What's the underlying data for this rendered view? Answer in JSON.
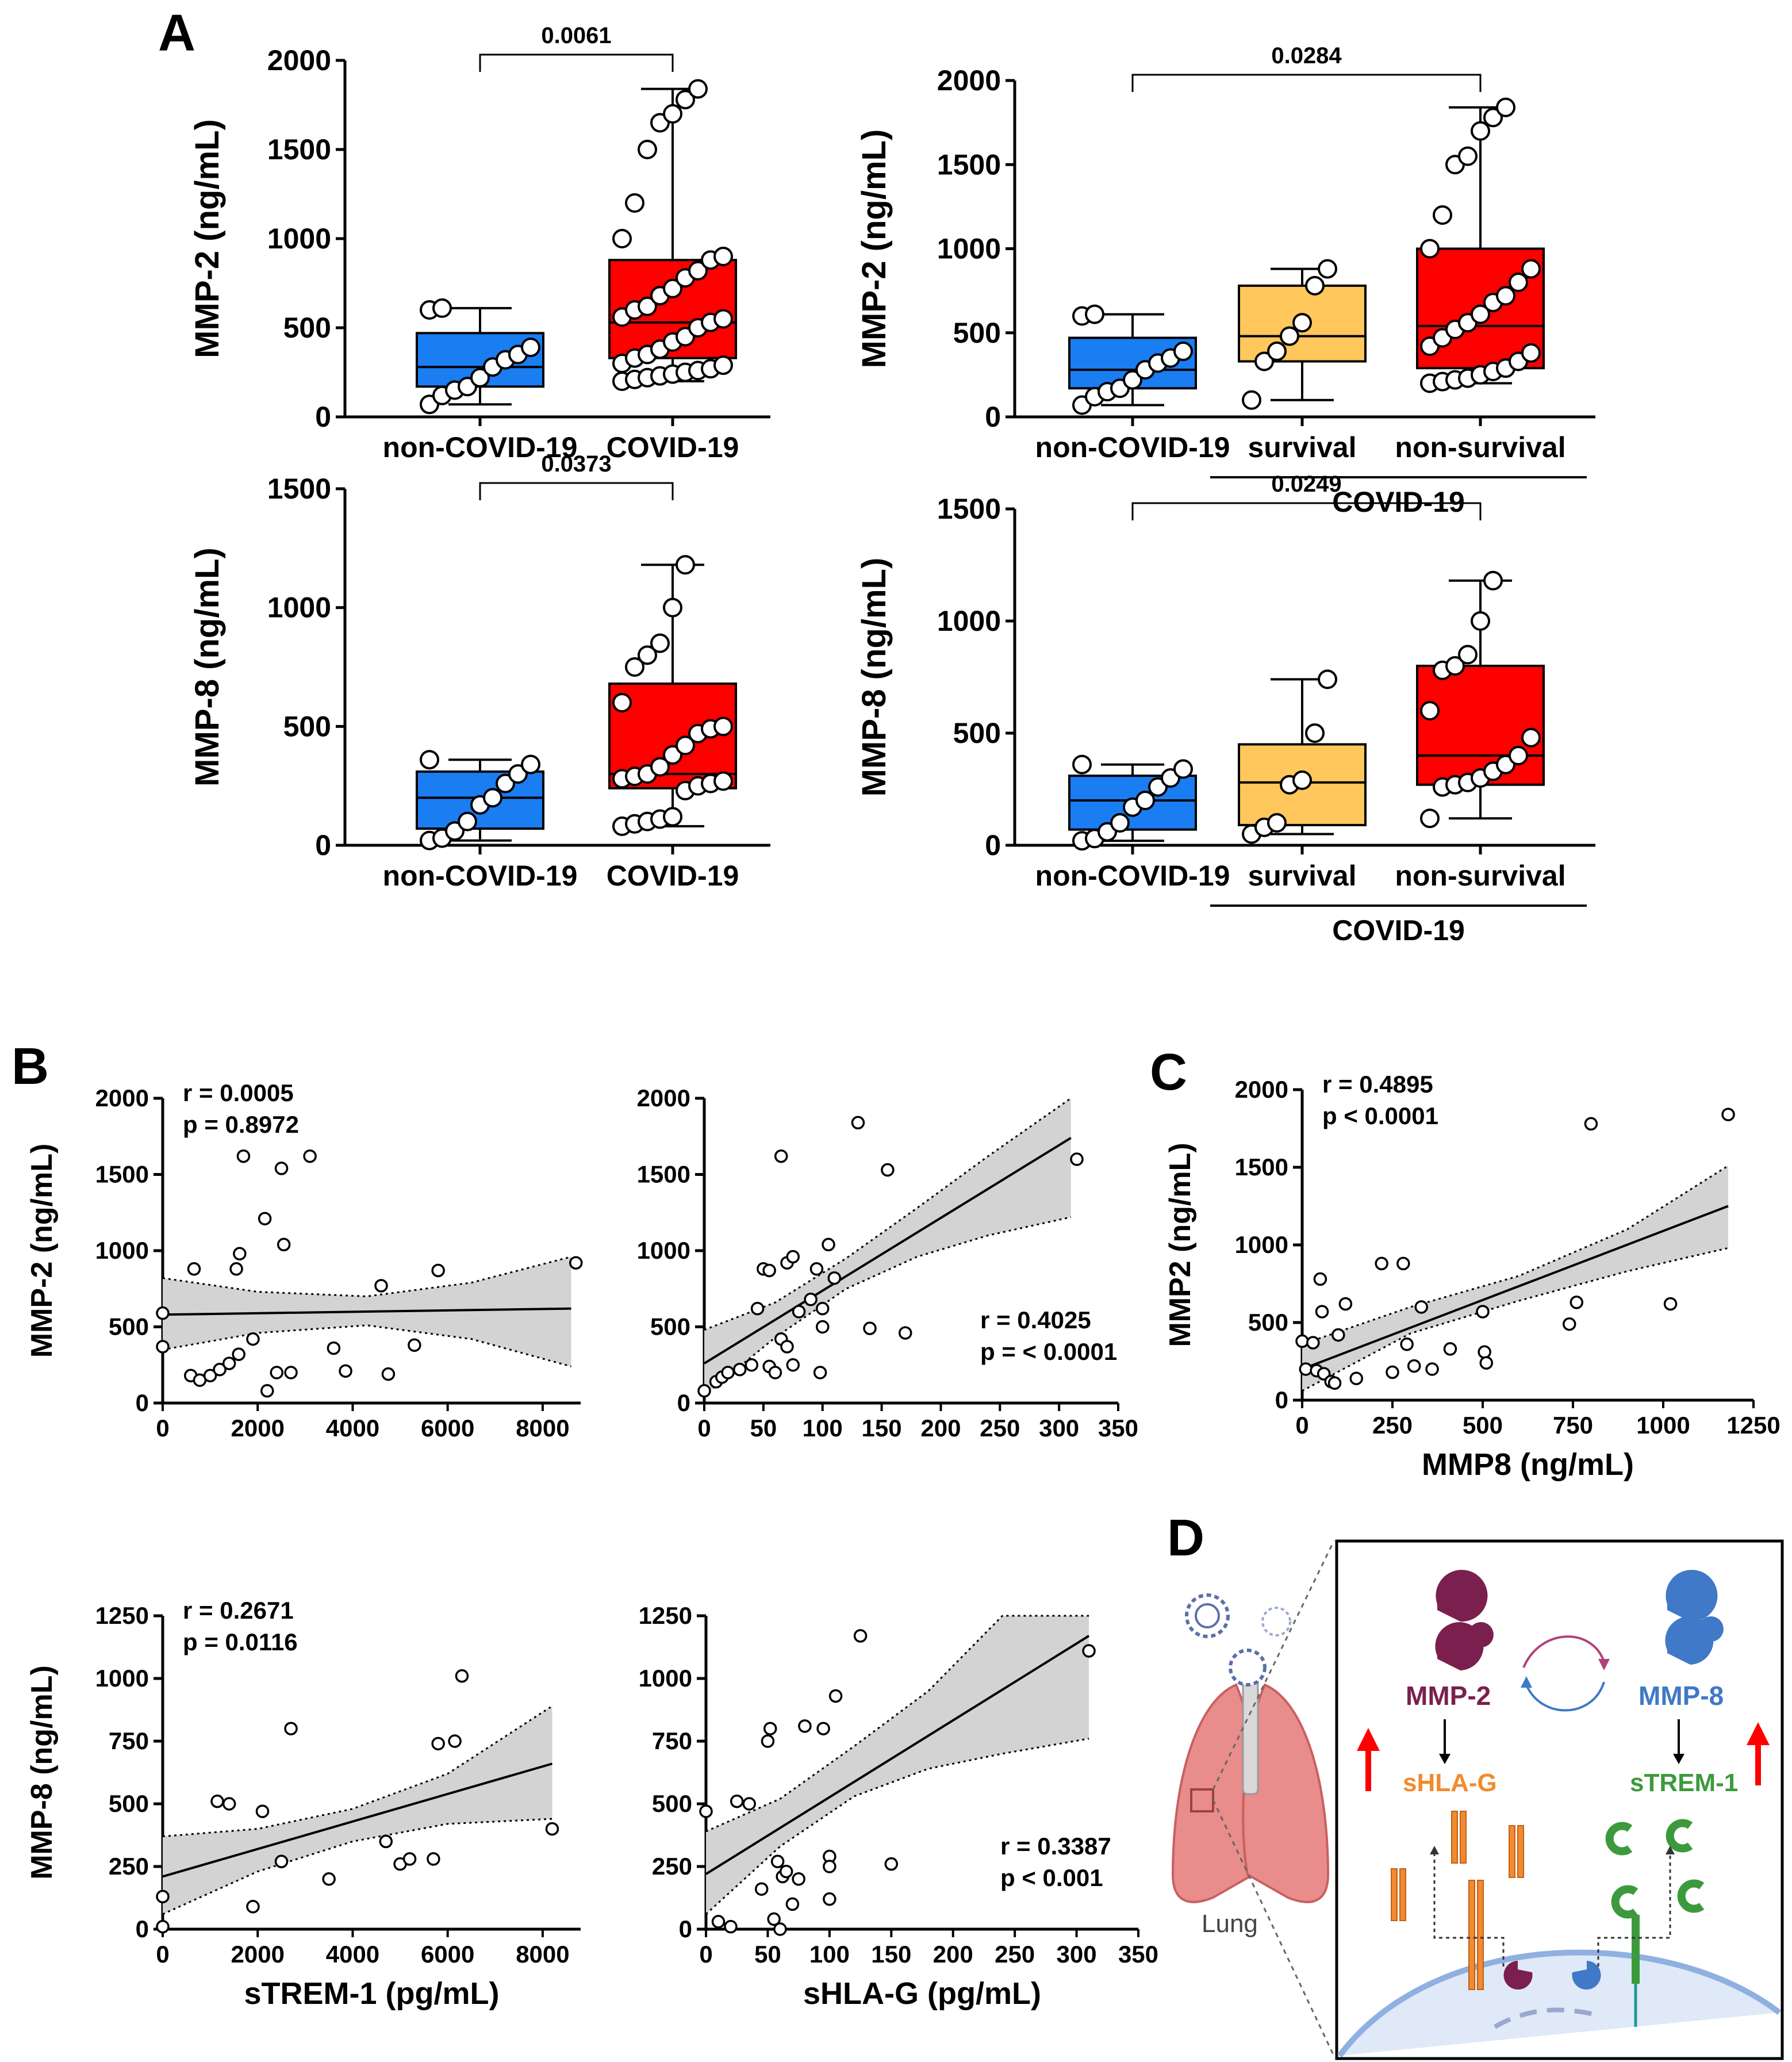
{
  "colors": {
    "non_covid": "#1a7df2",
    "covid": "#ff0000",
    "survival": "#ffc75c",
    "band": "#d3d3d3",
    "mmp2_icon": "#7a1f4e",
    "mmp8_icon": "#3f79c7",
    "shla_g": "#f28a2e",
    "strem1": "#3c9a3c",
    "arrow_up": "#ff0000",
    "lung": "#e88c8c"
  },
  "panel_labels": {
    "A": "A",
    "B": "B",
    "C": "C",
    "D": "D"
  },
  "diagram": {
    "mmp2": "MMP-2",
    "mmp8": "MMP-8",
    "shla_g": "sHLA-G",
    "strem1": "sTREM-1",
    "lung": "Lung"
  },
  "chart_data": [
    {
      "id": "A1",
      "type": "box",
      "ylabel": "MMP-2 (ng/mL)",
      "ylim": [
        0,
        2000
      ],
      "yticks": [
        0,
        500,
        1000,
        1500,
        2000
      ],
      "categories": [
        "non-COVID-19",
        "COVID-19"
      ],
      "pvalue": "0.0061",
      "compare": [
        0,
        1
      ],
      "boxes": [
        {
          "min": 70,
          "q1": 170,
          "median": 280,
          "q3": 470,
          "max": 610,
          "points": [
            70,
            120,
            150,
            170,
            220,
            280,
            320,
            350,
            390,
            600,
            610
          ]
        },
        {
          "min": 200,
          "q1": 330,
          "median": 530,
          "q3": 880,
          "max": 1840,
          "points": [
            200,
            210,
            220,
            230,
            240,
            250,
            260,
            270,
            290,
            300,
            330,
            350,
            380,
            420,
            450,
            500,
            530,
            550,
            560,
            600,
            620,
            680,
            720,
            780,
            820,
            880,
            900,
            1000,
            1200,
            1500,
            1650,
            1700,
            1780,
            1840
          ]
        }
      ]
    },
    {
      "id": "A2",
      "type": "box",
      "ylabel": "MMP-2 (ng/mL)",
      "ylim": [
        0,
        2000
      ],
      "yticks": [
        0,
        500,
        1000,
        1500,
        2000
      ],
      "categories": [
        "non-COVID-19",
        "survival",
        "non-survival"
      ],
      "group_label": "COVID-19",
      "pvalue": "0.0284",
      "compare": [
        0,
        2
      ],
      "boxes": [
        {
          "min": 70,
          "q1": 170,
          "median": 280,
          "q3": 470,
          "max": 610,
          "points": [
            70,
            120,
            150,
            170,
            220,
            280,
            320,
            350,
            390,
            600,
            610
          ]
        },
        {
          "min": 100,
          "q1": 330,
          "median": 480,
          "q3": 780,
          "max": 880,
          "points": [
            100,
            330,
            390,
            480,
            560,
            780,
            880
          ]
        },
        {
          "min": 200,
          "q1": 290,
          "median": 540,
          "q3": 1000,
          "max": 1840,
          "points": [
            200,
            210,
            220,
            230,
            250,
            270,
            290,
            330,
            380,
            420,
            470,
            520,
            560,
            610,
            680,
            720,
            800,
            880,
            1000,
            1200,
            1500,
            1550,
            1700,
            1780,
            1840
          ]
        }
      ]
    },
    {
      "id": "A3",
      "type": "box",
      "ylabel": "MMP-8 (ng/mL)",
      "ylim": [
        0,
        1500
      ],
      "yticks": [
        0,
        500,
        1000,
        1500
      ],
      "categories": [
        "non-COVID-19",
        "COVID-19"
      ],
      "pvalue": "0.0373",
      "compare": [
        0,
        1
      ],
      "boxes": [
        {
          "min": 20,
          "q1": 70,
          "median": 200,
          "q3": 310,
          "max": 360,
          "points": [
            20,
            30,
            60,
            100,
            170,
            200,
            260,
            300,
            340,
            360
          ]
        },
        {
          "min": 80,
          "q1": 240,
          "median": 300,
          "q3": 680,
          "max": 1180,
          "points": [
            80,
            90,
            100,
            110,
            120,
            230,
            250,
            260,
            270,
            280,
            290,
            300,
            330,
            380,
            420,
            470,
            490,
            500,
            600,
            750,
            800,
            850,
            1000,
            1180
          ]
        }
      ]
    },
    {
      "id": "A4",
      "type": "box",
      "ylabel": "MMP-8 (ng/mL)",
      "ylim": [
        0,
        1500
      ],
      "yticks": [
        0,
        500,
        1000,
        1500
      ],
      "categories": [
        "non-COVID-19",
        "survival",
        "non-survival"
      ],
      "group_label": "COVID-19",
      "pvalue": "0.0249",
      "compare": [
        0,
        2
      ],
      "boxes": [
        {
          "min": 20,
          "q1": 70,
          "median": 200,
          "q3": 310,
          "max": 360,
          "points": [
            20,
            30,
            60,
            100,
            170,
            200,
            260,
            300,
            340,
            360
          ]
        },
        {
          "min": 50,
          "q1": 90,
          "median": 280,
          "q3": 450,
          "max": 740,
          "points": [
            50,
            80,
            100,
            270,
            290,
            500,
            740
          ]
        },
        {
          "min": 120,
          "q1": 270,
          "median": 400,
          "q3": 800,
          "max": 1180,
          "points": [
            120,
            260,
            270,
            280,
            300,
            330,
            360,
            400,
            480,
            600,
            780,
            800,
            850,
            1000,
            1180
          ]
        }
      ]
    },
    {
      "id": "B1",
      "type": "scatter",
      "ylabel": "MMP-2 (ng/mL)",
      "xlabel": "",
      "xlim": [
        0,
        8800
      ],
      "ylim": [
        0,
        2000
      ],
      "xticks": [
        0,
        2000,
        4000,
        6000,
        8000
      ],
      "yticks": [
        0,
        500,
        1000,
        1500,
        2000
      ],
      "stats": [
        "r = 0.0005",
        "p = 0.8972"
      ],
      "stats_pos": "top-left",
      "fit": {
        "x0": 0,
        "y0": 580,
        "x1": 8600,
        "y1": 620
      },
      "band": {
        "xs": [
          0,
          2000,
          4300,
          6500,
          8600
        ],
        "lo": [
          350,
          460,
          510,
          420,
          240
        ],
        "hi": [
          820,
          730,
          700,
          790,
          960
        ]
      },
      "points": [
        [
          0,
          590
        ],
        [
          0,
          370
        ],
        [
          660,
          880
        ],
        [
          590,
          180
        ],
        [
          780,
          150
        ],
        [
          1000,
          180
        ],
        [
          1200,
          220
        ],
        [
          1400,
          260
        ],
        [
          1550,
          880
        ],
        [
          1620,
          980
        ],
        [
          1700,
          1620
        ],
        [
          1600,
          320
        ],
        [
          1900,
          420
        ],
        [
          2150,
          1210
        ],
        [
          2200,
          80
        ],
        [
          2400,
          200
        ],
        [
          2500,
          1540
        ],
        [
          2550,
          1040
        ],
        [
          2700,
          200
        ],
        [
          3100,
          1620
        ],
        [
          3600,
          360
        ],
        [
          3850,
          210
        ],
        [
          4600,
          770
        ],
        [
          4750,
          190
        ],
        [
          5300,
          380
        ],
        [
          5800,
          870
        ],
        [
          8700,
          920
        ]
      ]
    },
    {
      "id": "B2",
      "type": "scatter",
      "ylabel": "",
      "xlabel": "",
      "xlim": [
        0,
        350
      ],
      "ylim": [
        0,
        2000
      ],
      "xticks": [
        0,
        50,
        100,
        150,
        200,
        250,
        300,
        350
      ],
      "yticks": [
        0,
        500,
        1000,
        1500,
        2000
      ],
      "stats": [
        "r = 0.4025",
        "p = < 0.0001"
      ],
      "stats_pos": "bottom-right",
      "fit": {
        "x0": 0,
        "y0": 260,
        "x1": 310,
        "y1": 1740
      },
      "band": {
        "xs": [
          0,
          60,
          120,
          180,
          240,
          310
        ],
        "lo": [
          50,
          430,
          750,
          960,
          1100,
          1220
        ],
        "hi": [
          480,
          660,
          950,
          1280,
          1620,
          2000
        ]
      },
      "points": [
        [
          0,
          80
        ],
        [
          10,
          140
        ],
        [
          15,
          170
        ],
        [
          20,
          200
        ],
        [
          30,
          220
        ],
        [
          40,
          250
        ],
        [
          45,
          620
        ],
        [
          50,
          880
        ],
        [
          55,
          870
        ],
        [
          55,
          240
        ],
        [
          60,
          200
        ],
        [
          65,
          1620
        ],
        [
          65,
          420
        ],
        [
          70,
          370
        ],
        [
          70,
          920
        ],
        [
          75,
          960
        ],
        [
          75,
          250
        ],
        [
          80,
          600
        ],
        [
          90,
          680
        ],
        [
          95,
          880
        ],
        [
          98,
          200
        ],
        [
          100,
          500
        ],
        [
          100,
          620
        ],
        [
          105,
          1040
        ],
        [
          110,
          820
        ],
        [
          130,
          1840
        ],
        [
          140,
          490
        ],
        [
          155,
          1530
        ],
        [
          170,
          460
        ],
        [
          315,
          1600
        ]
      ]
    },
    {
      "id": "C",
      "type": "scatter",
      "ylabel": "MMP2 (ng/mL)",
      "xlabel": "MMP8 (ng/mL)",
      "xlim": [
        0,
        1250
      ],
      "ylim": [
        0,
        2000
      ],
      "xticks": [
        0,
        250,
        500,
        750,
        1000,
        1250
      ],
      "yticks": [
        0,
        500,
        1000,
        1500,
        2000
      ],
      "stats": [
        "r = 0.4895",
        "p < 0.0001"
      ],
      "stats_pos": "top-left",
      "fit": {
        "x0": 0,
        "y0": 200,
        "x1": 1180,
        "y1": 1250
      },
      "band": {
        "xs": [
          0,
          300,
          600,
          900,
          1180
        ],
        "lo": [
          60,
          430,
          640,
          830,
          980
        ],
        "hi": [
          360,
          600,
          800,
          1100,
          1510
        ]
      },
      "points": [
        [
          0,
          380
        ],
        [
          10,
          200
        ],
        [
          30,
          370
        ],
        [
          40,
          190
        ],
        [
          50,
          780
        ],
        [
          55,
          570
        ],
        [
          60,
          170
        ],
        [
          80,
          120
        ],
        [
          90,
          110
        ],
        [
          100,
          420
        ],
        [
          120,
          620
        ],
        [
          150,
          140
        ],
        [
          220,
          880
        ],
        [
          250,
          180
        ],
        [
          280,
          880
        ],
        [
          290,
          360
        ],
        [
          310,
          220
        ],
        [
          330,
          600
        ],
        [
          360,
          200
        ],
        [
          410,
          330
        ],
        [
          500,
          570
        ],
        [
          505,
          310
        ],
        [
          510,
          240
        ],
        [
          740,
          490
        ],
        [
          760,
          630
        ],
        [
          800,
          1780
        ],
        [
          1020,
          620
        ],
        [
          1180,
          1840
        ]
      ]
    },
    {
      "id": "B3",
      "type": "scatter",
      "ylabel": "MMP-8 (ng/mL)",
      "xlabel": "sTREM-1 (pg/mL)",
      "xlim": [
        0,
        8800
      ],
      "ylim": [
        0,
        1250
      ],
      "xticks": [
        0,
        2000,
        4000,
        6000,
        8000
      ],
      "yticks": [
        0,
        250,
        500,
        750,
        1000,
        1250
      ],
      "stats": [
        "r = 0.2671",
        "p = 0.0116"
      ],
      "stats_pos": "top-left",
      "fit": {
        "x0": 0,
        "y0": 210,
        "x1": 8200,
        "y1": 660
      },
      "band": {
        "xs": [
          0,
          2000,
          4000,
          6000,
          8200
        ],
        "lo": [
          60,
          230,
          350,
          420,
          440
        ],
        "hi": [
          370,
          400,
          480,
          620,
          890
        ]
      },
      "points": [
        [
          0,
          10
        ],
        [
          0,
          130
        ],
        [
          1150,
          510
        ],
        [
          1400,
          500
        ],
        [
          1900,
          90
        ],
        [
          2100,
          470
        ],
        [
          2500,
          270
        ],
        [
          2700,
          800
        ],
        [
          3500,
          200
        ],
        [
          4700,
          350
        ],
        [
          5000,
          260
        ],
        [
          5200,
          280
        ],
        [
          5700,
          280
        ],
        [
          5800,
          740
        ],
        [
          6150,
          750
        ],
        [
          6300,
          1010
        ],
        [
          8200,
          400
        ]
      ]
    },
    {
      "id": "B4",
      "type": "scatter",
      "ylabel": "",
      "xlabel": "sHLA-G (pg/mL)",
      "xlim": [
        0,
        350
      ],
      "ylim": [
        0,
        1250
      ],
      "xticks": [
        0,
        50,
        100,
        150,
        200,
        250,
        300,
        350
      ],
      "yticks": [
        0,
        250,
        500,
        750,
        1000,
        1250
      ],
      "stats": [
        "r = 0.3387",
        "p < 0.001"
      ],
      "stats_pos": "bottom-right",
      "fit": {
        "x0": 0,
        "y0": 220,
        "x1": 310,
        "y1": 1170
      },
      "band": {
        "xs": [
          0,
          60,
          120,
          180,
          240,
          310
        ],
        "lo": [
          60,
          330,
          530,
          640,
          700,
          760
        ],
        "hi": [
          390,
          520,
          730,
          950,
          1250,
          1250
        ]
      },
      "points": [
        [
          0,
          470
        ],
        [
          10,
          30
        ],
        [
          20,
          10
        ],
        [
          25,
          510
        ],
        [
          35,
          500
        ],
        [
          45,
          160
        ],
        [
          50,
          750
        ],
        [
          52,
          800
        ],
        [
          55,
          40
        ],
        [
          58,
          270
        ],
        [
          60,
          0
        ],
        [
          62,
          210
        ],
        [
          65,
          230
        ],
        [
          70,
          100
        ],
        [
          75,
          200
        ],
        [
          80,
          810
        ],
        [
          95,
          800
        ],
        [
          100,
          290
        ],
        [
          100,
          250
        ],
        [
          100,
          120
        ],
        [
          105,
          930
        ],
        [
          125,
          1170
        ],
        [
          150,
          260
        ],
        [
          310,
          1110
        ]
      ]
    }
  ]
}
